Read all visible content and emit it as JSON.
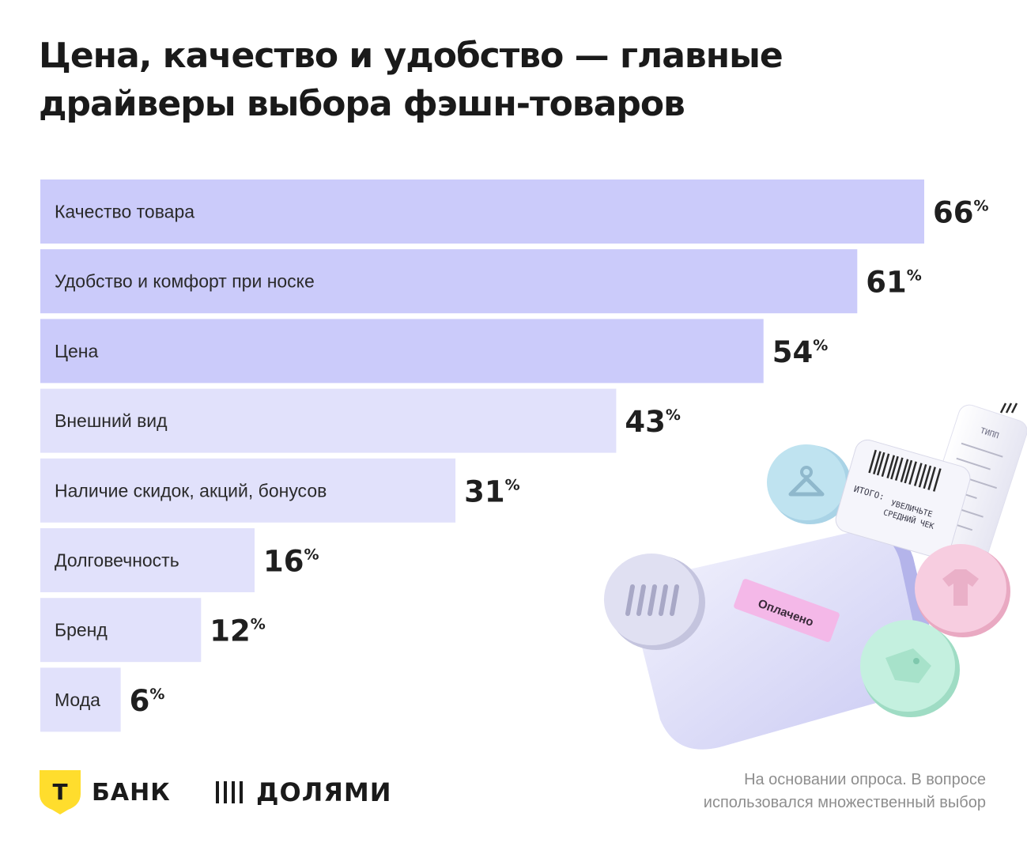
{
  "title_lines": [
    "Цена, качество и удобство — главные",
    "драйверы выбора фэшн-товаров"
  ],
  "unit": "%",
  "footnote_lines": [
    "На основании опроса. В вопросе",
    "использовался множественный выбор"
  ],
  "logos": {
    "tbank_letter": "Т",
    "tbank_text": "БАНК",
    "dolyami_text": "ДОЛЯМИ"
  },
  "illustration": {
    "paid_label": "Оплачено",
    "receipt_total": "ИТОГО:",
    "receipt_text_1": "УВЕЛИЧЬТЕ",
    "receipt_text_2": "СРЕДНИЙ ЧЕК",
    "receipt_header": "ТИПП"
  },
  "colors": {
    "bar_top": "#cbcbfa",
    "bar_rest": "#e1e1fb",
    "shield_yellow": "#ffdd2d",
    "coin_blue": "#bfe3f0",
    "coin_pink": "#f5c8d8",
    "coin_green": "#bfeedd",
    "coin_silver": "#dcdcef",
    "paid_badge": "#f4b8e8"
  },
  "chart_data": {
    "type": "bar",
    "orientation": "horizontal",
    "title": "Цена, качество и удобство — главные драйверы выбора фэшн-товаров",
    "categories": [
      "Качество товара",
      "Удобство и комфорт при носке",
      "Цена",
      "Внешний вид",
      "Наличие скидок, акций, бонусов",
      "Долговечность",
      "Бренд",
      "Мода"
    ],
    "values": [
      66,
      61,
      54,
      43,
      31,
      16,
      12,
      6
    ],
    "xlim": [
      0,
      66
    ],
    "highlighted_top": 3,
    "grid": false,
    "legend": "none"
  }
}
